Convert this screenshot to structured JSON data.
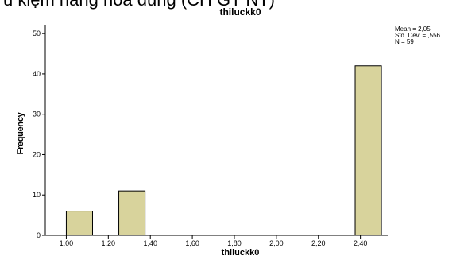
{
  "caption_text": "u kiệm hang hóa dung (CH GT NT)",
  "stats": {
    "mean": "Mean = 2,05",
    "std_dev": "Std. Dev. = ,556",
    "n": "N = 59"
  },
  "colors": {
    "bar_fill": "#d8d39c",
    "bar_stroke": "#000000",
    "axis": "#000000",
    "background": "#ffffff"
  },
  "chart_data": {
    "type": "bar",
    "title": "thiluckk0",
    "xlabel": "thiluckk0",
    "ylabel": "Frequency",
    "xlim": [
      0.9,
      2.53
    ],
    "ylim": [
      0,
      52
    ],
    "x_ticks": [
      "1,00",
      "1,20",
      "1,40",
      "1,60",
      "1,80",
      "2,00",
      "2,20",
      "2,40"
    ],
    "x_tick_values": [
      1.0,
      1.2,
      1.4,
      1.6,
      1.8,
      2.0,
      2.2,
      2.4
    ],
    "y_ticks": [
      "0",
      "10",
      "20",
      "30",
      "40",
      "50"
    ],
    "y_tick_values": [
      0,
      10,
      20,
      30,
      40,
      50
    ],
    "bins": [
      {
        "x0": 1.0,
        "x1": 1.125,
        "value": 6
      },
      {
        "x0": 1.25,
        "x1": 1.375,
        "value": 11
      },
      {
        "x0": 2.375,
        "x1": 2.5,
        "value": 42
      }
    ],
    "grid": false,
    "legend": "none"
  }
}
